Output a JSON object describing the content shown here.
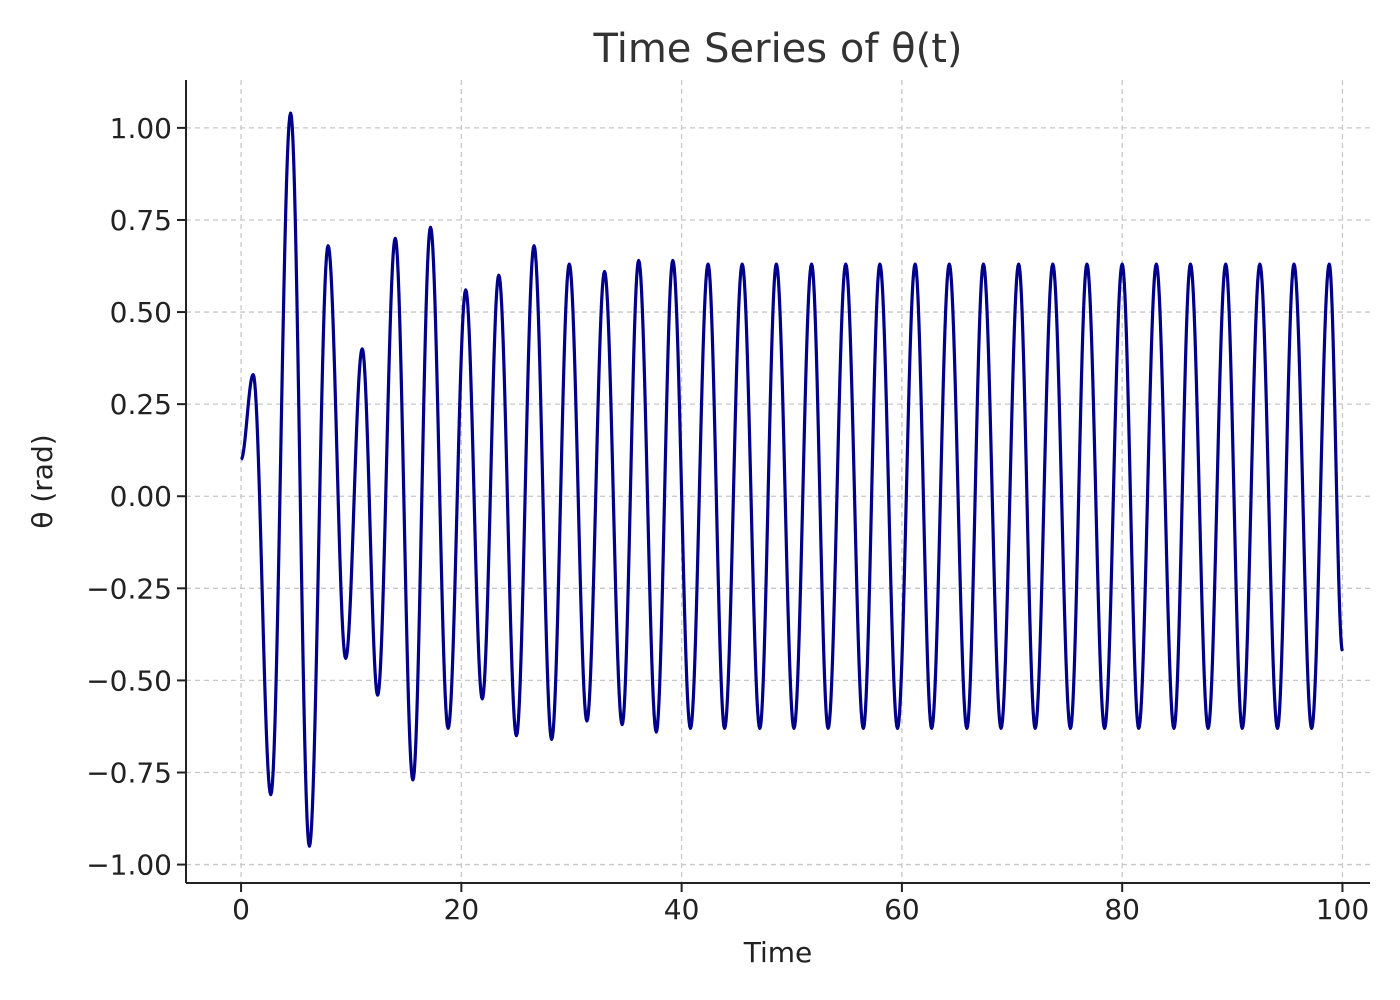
{
  "chart_data": {
    "type": "line",
    "title": "Time Series of θ(t)",
    "xlabel": "Time",
    "ylabel": "θ (rad)",
    "xlim": [
      -5,
      102.5
    ],
    "ylim": [
      -1.05,
      1.13
    ],
    "xticks": [
      0,
      20,
      40,
      60,
      80,
      100
    ],
    "xtick_labels": [
      "0",
      "20",
      "40",
      "60",
      "80",
      "100"
    ],
    "yticks": [
      1.0,
      0.75,
      0.5,
      0.25,
      0.0,
      -0.25,
      -0.5,
      -0.75,
      -1.0
    ],
    "ytick_labels": [
      "1.00",
      "0.75",
      "0.50",
      "0.25",
      "0.00",
      "−0.25",
      "−0.50",
      "−0.75",
      "−1.00"
    ],
    "grid": true,
    "grid_style": "dashed",
    "line_color": "#00008b",
    "series": [
      {
        "x": [
          0,
          1.1,
          2.7,
          4.5,
          6.2,
          7.9,
          9.5,
          11.0,
          12.4,
          14.0,
          15.6,
          17.2,
          18.8,
          20.4,
          21.9,
          23.4,
          25.0,
          26.6,
          28.2,
          29.8,
          31.4,
          33.0,
          34.6,
          36.1,
          37.7,
          39.2,
          40.8,
          42.4,
          43.9,
          45.5,
          47.1,
          48.6,
          50.2,
          51.8,
          53.3,
          54.9,
          56.5,
          58.0,
          59.6,
          61.2,
          62.7,
          64.3,
          65.9,
          67.4,
          69.0,
          70.6,
          72.1,
          73.7,
          75.3,
          76.8,
          78.4,
          80.0,
          81.5,
          83.1,
          84.7,
          86.2,
          87.8,
          89.4,
          90.9,
          92.5,
          94.1,
          95.6,
          97.2,
          98.8,
          100
        ],
        "y": [
          0.1,
          0.33,
          -0.81,
          1.04,
          -0.95,
          0.68,
          -0.44,
          0.4,
          -0.54,
          0.7,
          -0.77,
          0.73,
          -0.63,
          0.56,
          -0.55,
          0.6,
          -0.65,
          0.68,
          -0.66,
          0.63,
          -0.61,
          0.61,
          -0.62,
          0.64,
          -0.64,
          0.64,
          -0.63,
          0.63,
          -0.63,
          0.63,
          -0.63,
          0.63,
          -0.63,
          0.63,
          -0.63,
          0.63,
          -0.63,
          0.63,
          -0.63,
          0.63,
          -0.63,
          0.63,
          -0.63,
          0.63,
          -0.63,
          0.63,
          -0.63,
          0.63,
          -0.63,
          0.63,
          -0.63,
          0.63,
          -0.63,
          0.63,
          -0.63,
          0.63,
          -0.63,
          0.63,
          -0.63,
          0.63,
          -0.63,
          0.63,
          -0.63,
          0.63,
          -0.42
        ]
      }
    ]
  }
}
